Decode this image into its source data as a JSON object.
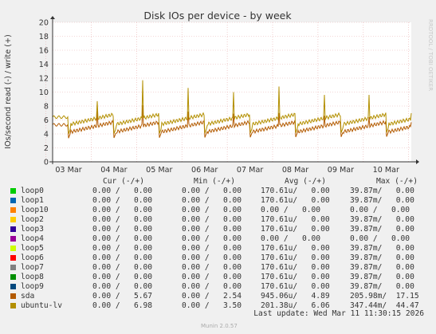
{
  "chart_data": {
    "type": "line",
    "title": "Disk IOs per device - by week",
    "ylabel": "IOs/second read (-) / write (+)",
    "ylim": [
      0,
      20
    ],
    "yticks": [
      0,
      2,
      4,
      6,
      8,
      10,
      12,
      14,
      16,
      18,
      20
    ],
    "xticks": [
      "03 Mar",
      "04 Mar",
      "05 Mar",
      "06 Mar",
      "07 Mar",
      "08 Mar",
      "09 Mar",
      "10 Mar"
    ],
    "x_days_start": "02 Mar (partial)",
    "grid": true,
    "side_label": "RRDTOOL / TOBI OETIKER",
    "series": [
      {
        "name": "sda",
        "color": "#b35a00",
        "baseline": 4.9,
        "daily_dip": 3.4,
        "spikes": [
          7.3,
          8.1,
          7.2,
          6.9,
          7.0,
          6.6,
          6.4,
          6.8,
          7.5
        ],
        "end_value": 5.67
      },
      {
        "name": "ubuntu-lv",
        "color": "#b38f00",
        "baseline": 6.0,
        "daily_dip": 4.0,
        "spikes": [
          8.7,
          11.7,
          10.6,
          10.0,
          10.8,
          9.6,
          9.6,
          13.1,
          9.4
        ],
        "end_value": 6.98
      }
    ]
  },
  "legend": {
    "headers": {
      "cur": "Cur (-/+)",
      "min": "Min (-/+)",
      "avg": "Avg (-/+)",
      "max": "Max (-/+)"
    },
    "rows": [
      {
        "name": "loop0",
        "color": "#00cc00",
        "cur": "0.00 /   0.00",
        "min": "0.00 /   0.00",
        "avg": "170.61u/   0.00",
        "max": "39.87m/   0.00"
      },
      {
        "name": "loop1",
        "color": "#0066b3",
        "cur": "0.00 /   0.00",
        "min": "0.00 /   0.00",
        "avg": "170.61u/   0.00",
        "max": "39.87m/   0.00"
      },
      {
        "name": "loop10",
        "color": "#ff8000",
        "cur": "0.00 /   0.00",
        "min": "0.00 /   0.00",
        "avg": "0.00 /   0.00",
        "max": "0.00 /   0.00"
      },
      {
        "name": "loop2",
        "color": "#ffcc00",
        "cur": "0.00 /   0.00",
        "min": "0.00 /   0.00",
        "avg": "170.61u/   0.00",
        "max": "39.87m/   0.00"
      },
      {
        "name": "loop3",
        "color": "#330099",
        "cur": "0.00 /   0.00",
        "min": "0.00 /   0.00",
        "avg": "170.61u/   0.00",
        "max": "39.87m/   0.00"
      },
      {
        "name": "loop4",
        "color": "#990099",
        "cur": "0.00 /   0.00",
        "min": "0.00 /   0.00",
        "avg": "0.00 /   0.00",
        "max": "0.00 /   0.00"
      },
      {
        "name": "loop5",
        "color": "#ccff00",
        "cur": "0.00 /   0.00",
        "min": "0.00 /   0.00",
        "avg": "170.61u/   0.00",
        "max": "39.87m/   0.00"
      },
      {
        "name": "loop6",
        "color": "#ff0000",
        "cur": "0.00 /   0.00",
        "min": "0.00 /   0.00",
        "avg": "170.61u/   0.00",
        "max": "39.87m/   0.00"
      },
      {
        "name": "loop7",
        "color": "#808080",
        "cur": "0.00 /   0.00",
        "min": "0.00 /   0.00",
        "avg": "170.61u/   0.00",
        "max": "39.87m/   0.00"
      },
      {
        "name": "loop8",
        "color": "#008f00",
        "cur": "0.00 /   0.00",
        "min": "0.00 /   0.00",
        "avg": "170.61u/   0.00",
        "max": "39.87m/   0.00"
      },
      {
        "name": "loop9",
        "color": "#00487d",
        "cur": "0.00 /   0.00",
        "min": "0.00 /   0.00",
        "avg": "170.61u/   0.00",
        "max": "39.87m/   0.00"
      },
      {
        "name": "sda",
        "color": "#b35a00",
        "cur": "0.00 /   5.67",
        "min": "0.00 /   2.54",
        "avg": "945.06u/   4.89",
        "max": "205.98m/  17.15"
      },
      {
        "name": "ubuntu-lv",
        "color": "#b38f00",
        "cur": "0.00 /   6.98",
        "min": "0.00 /   3.50",
        "avg": "201.38u/   6.06",
        "max": "347.44m/  44.47"
      }
    ],
    "last_update": "Last update: Wed Mar 11 11:30:15 2026",
    "munin_version": "Munin 2.0.57"
  }
}
